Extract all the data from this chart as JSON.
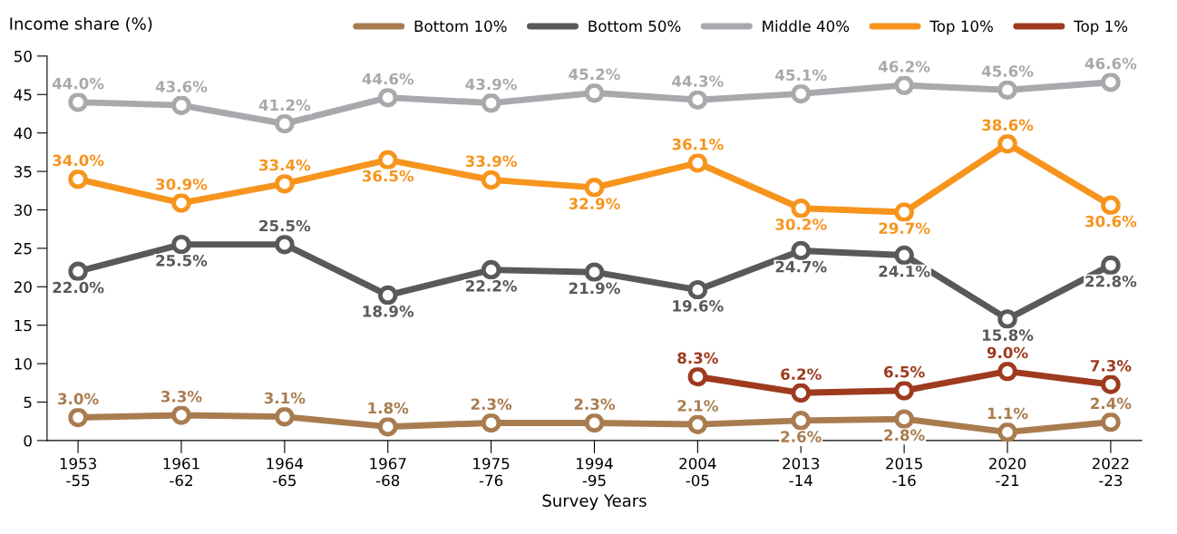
{
  "chart_data": {
    "type": "line",
    "ylabel": "Income share (%)",
    "xlabel": "Survey Years",
    "categories": [
      "1953\n-55",
      "1961\n-62",
      "1964\n-65",
      "1967\n-68",
      "1975\n-76",
      "1994\n-95",
      "2004\n-05",
      "2013\n-14",
      "2015\n-16",
      "2020\n-21",
      "2022\n-23"
    ],
    "series": [
      {
        "name": "Bottom 10%",
        "color": "#a97c50",
        "values": [
          3.0,
          3.3,
          3.1,
          1.8,
          2.3,
          2.3,
          2.1,
          2.6,
          2.8,
          1.1,
          2.4
        ],
        "value_labels": [
          "3.0%",
          "3.3%",
          "3.1%",
          "1.8%",
          "2.3%",
          "2.3%",
          "2.1%",
          "2.6%",
          "2.8%",
          "1.1%",
          "2.4%"
        ]
      },
      {
        "name": "Bottom 50%",
        "color": "#58595b",
        "values": [
          22.0,
          25.5,
          25.5,
          18.9,
          22.2,
          21.9,
          19.6,
          24.7,
          24.1,
          15.8,
          22.8
        ],
        "value_labels": [
          "22.0%",
          "25.5%",
          "25.5%",
          "18.9%",
          "22.2%",
          "21.9%",
          "19.6%",
          "24.7%",
          "24.1%",
          "15.8%",
          "22.8%"
        ]
      },
      {
        "name": "Middle 40%",
        "color": "#a7a9ac",
        "values": [
          44.0,
          43.6,
          41.2,
          44.6,
          43.9,
          45.2,
          44.3,
          45.1,
          46.2,
          45.6,
          46.6
        ],
        "value_labels": [
          "44.0%",
          "43.6%",
          "41.2%",
          "44.6%",
          "43.9%",
          "45.2%",
          "44.3%",
          "45.1%",
          "46.2%",
          "45.6%",
          "46.6%"
        ]
      },
      {
        "name": "Top 10%",
        "color": "#f7941d",
        "values": [
          34.0,
          30.9,
          33.4,
          36.5,
          33.9,
          32.9,
          36.1,
          30.2,
          29.7,
          38.6,
          30.6
        ],
        "value_labels": [
          "34.0%",
          "30.9%",
          "33.4%",
          "36.5%",
          "33.9%",
          "32.9%",
          "36.1%",
          "30.2%",
          "29.7%",
          "38.6%",
          "30.6%"
        ]
      },
      {
        "name": "Top 1%",
        "color": "#9e3a1e",
        "values": [
          null,
          null,
          null,
          null,
          null,
          null,
          8.3,
          6.2,
          6.5,
          9.0,
          7.3
        ],
        "value_labels": [
          null,
          null,
          null,
          null,
          null,
          null,
          "8.3%",
          "6.2%",
          "6.5%",
          "9.0%",
          "7.3%"
        ]
      }
    ],
    "ylim": [
      0,
      50
    ],
    "yticks": [
      0,
      5,
      10,
      15,
      20,
      25,
      30,
      35,
      40,
      45,
      50
    ],
    "marker": "circle",
    "line_style": "solid",
    "legend": "top right",
    "grid": false
  }
}
